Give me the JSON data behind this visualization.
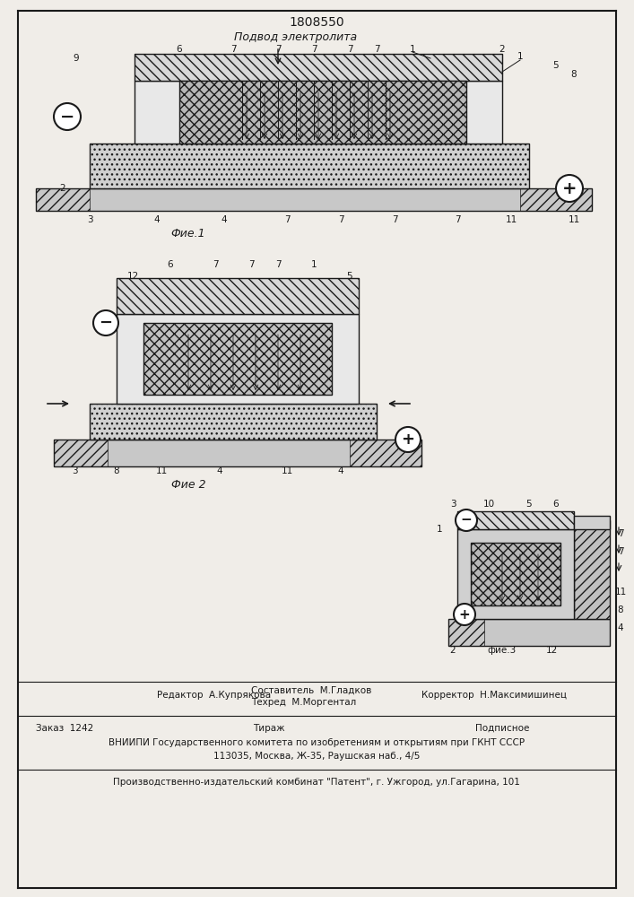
{
  "title_number": "1808550",
  "subtitle": "Подвод электролита",
  "fig1_label": "Фие.1",
  "fig2_label": "Фие 2",
  "fig3_label": "фие.3",
  "editor_line": "Редактор  А.Купрякова",
  "composer_line1": "Составитель  М.Гладков",
  "composer_line2": "Техред  М.Моргентал",
  "corrector_line": "Корректор  Н.Максимишинец",
  "order_line": "Заказ  1242",
  "tirazh_line": "Тираж",
  "podpisnoe_line": "Подписное",
  "vniip_line": "ВНИИПИ Государственного комитета по изобретениям и открытиям при ГКНТ СССР",
  "address_line": "113035, Москва, Ж-35, Раушская наб., 4/5",
  "factory_line": "Производственно-издательский комбинат \"Патент\", г. Ужгород, ул.Гагарина, 101",
  "bg_color": "#f0ede8",
  "line_color": "#1a1a1a",
  "hatch_color": "#1a1a1a"
}
